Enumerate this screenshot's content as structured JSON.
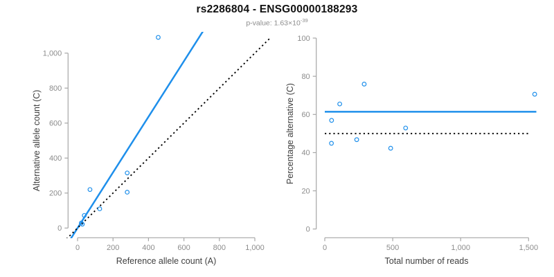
{
  "header": {
    "title": "rs2286804 - ENSG00000188293",
    "pvalue_prefix": "p-value: 1.63×10",
    "pvalue_exponent": "-39"
  },
  "colors": {
    "accent_blue": "#1e8feb",
    "line_black": "#000000",
    "axis_line_gray": "#a6a6a6",
    "tick_label_gray": "#8c8c8c",
    "axis_title_color": "#404040",
    "title_color": "#111111",
    "subtitle_gray": "#8c8c8c",
    "background": "#ffffff"
  },
  "chart_data": [
    {
      "type": "scatter",
      "panel": "left",
      "xlabel": "Reference allele count (A)",
      "ylabel": "Alternative allele count (C)",
      "xlim": [
        0,
        1000
      ],
      "ylim": [
        0,
        1000
      ],
      "xticks": [
        0,
        200,
        400,
        600,
        800,
        1000
      ],
      "xtick_labels": [
        "0",
        "200",
        "400",
        "600",
        "800",
        "1,000"
      ],
      "yticks": [
        0,
        200,
        400,
        600,
        800,
        1000
      ],
      "ytick_labels": [
        "0",
        "200",
        "400",
        "600",
        "800",
        "1,000"
      ],
      "grid": false,
      "legend": null,
      "point_color": "#1e8feb",
      "points": [
        [
          455,
          1090
        ],
        [
          70,
          220
        ],
        [
          280,
          315
        ],
        [
          280,
          205
        ],
        [
          125,
          110
        ],
        [
          38,
          72
        ],
        [
          21,
          29
        ],
        [
          27,
          22
        ]
      ],
      "lines": [
        {
          "name": "fitted-ratio-line",
          "style": "solid",
          "color": "#1e8feb",
          "slope": 1.59,
          "intercept": 0
        },
        {
          "name": "identity-line",
          "style": "dotted",
          "color": "#000000",
          "slope": 1,
          "intercept": 0
        }
      ]
    },
    {
      "type": "scatter",
      "panel": "right",
      "xlabel": "Total number of reads",
      "ylabel": "Percentage alternative (C)",
      "xlim": [
        0,
        1500
      ],
      "ylim": [
        0,
        100
      ],
      "xticks": [
        0,
        500,
        1000,
        1500
      ],
      "xtick_labels": [
        "0",
        "500",
        "1,000",
        "1,500"
      ],
      "yticks": [
        0,
        20,
        40,
        60,
        80,
        100
      ],
      "ytick_labels": [
        "0",
        "20",
        "40",
        "60",
        "80",
        "100"
      ],
      "grid": false,
      "legend": null,
      "point_color": "#1e8feb",
      "points": [
        [
          1545,
          70.6
        ],
        [
          290,
          75.9
        ],
        [
          595,
          52.9
        ],
        [
          485,
          42.3
        ],
        [
          235,
          46.8
        ],
        [
          110,
          65.5
        ],
        [
          50,
          56.9
        ],
        [
          49,
          44.9
        ]
      ],
      "lines": [
        {
          "name": "mean-percentage-line",
          "style": "solid",
          "color": "#1e8feb",
          "value": 61.4
        },
        {
          "name": "fifty-percent-line",
          "style": "dotted",
          "color": "#000000",
          "value": 50
        }
      ]
    }
  ]
}
